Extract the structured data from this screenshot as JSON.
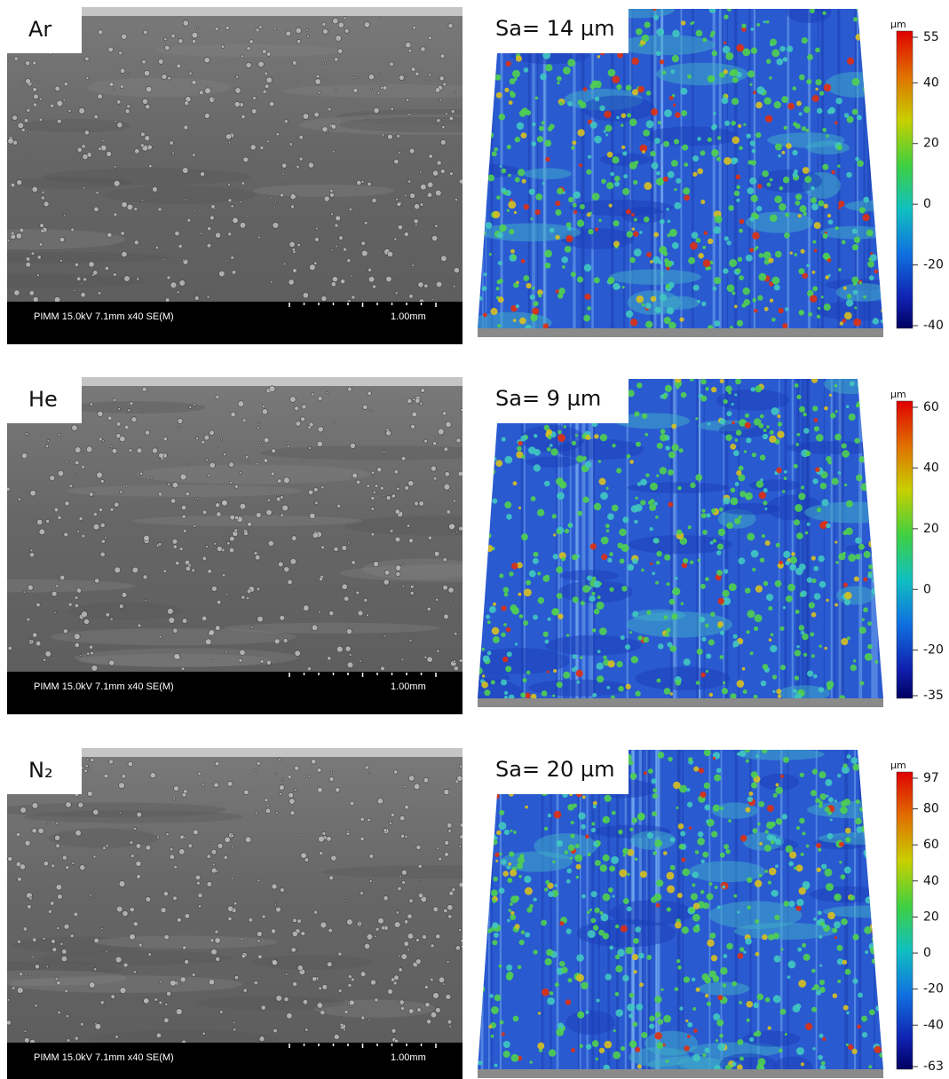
{
  "panels": [
    {
      "gas": "Ar",
      "sem_info": "PIMM 15.0kV 7.1mm x40 SE(M)",
      "sem_scale": "1.00mm",
      "roughness": "Sa= 14 µm",
      "colorbar": {
        "unit": "µm",
        "ticks": [
          55,
          40,
          20,
          0,
          -20,
          -40
        ]
      }
    },
    {
      "gas": "He",
      "sem_info": "PIMM 15.0kV 7.1mm x40 SE(M)",
      "sem_scale": "1.00mm",
      "roughness": "Sa= 9 µm",
      "colorbar": {
        "unit": "µm",
        "ticks": [
          60,
          40,
          20,
          0,
          -20,
          -35
        ]
      }
    },
    {
      "gas": "N₂",
      "sem_info": "PIMM 15.0kV 7.1mm x40 SE(M)",
      "sem_scale": "1.00mm",
      "roughness": "Sa= 20 µm",
      "colorbar": {
        "unit": "µm",
        "ticks": [
          97,
          80,
          60,
          40,
          20,
          0,
          -20,
          -40,
          -63
        ]
      }
    }
  ]
}
